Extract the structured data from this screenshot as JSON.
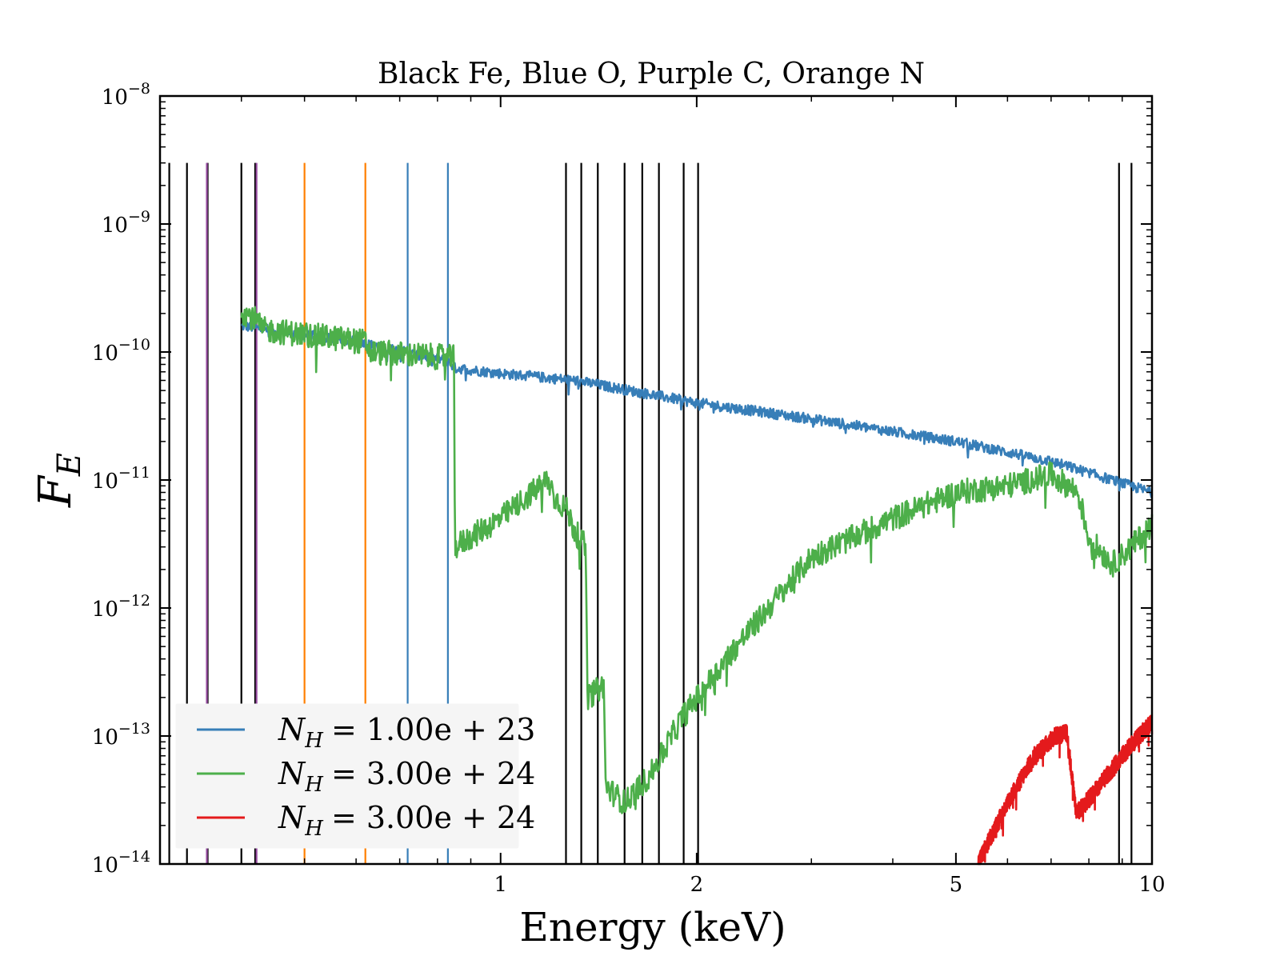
{
  "chart_data": {
    "type": "line",
    "title": "Black Fe, Blue O, Purple C, Orange N",
    "xlabel": "Energy (keV)",
    "ylabel": "F_E",
    "xscale": "log",
    "yscale": "log",
    "xlim": [
      0.3,
      10
    ],
    "ylim": [
      1e-14,
      1e-08
    ],
    "x_ticks": [
      {
        "value": 1,
        "label": "1"
      },
      {
        "value": 2,
        "label": "2"
      },
      {
        "value": 5,
        "label": "5"
      },
      {
        "value": 10,
        "label": "10"
      }
    ],
    "y_ticks": [
      {
        "value": 1e-14,
        "base": "10",
        "exp": "−14"
      },
      {
        "value": 1e-13,
        "base": "10",
        "exp": "−13"
      },
      {
        "value": 1e-12,
        "base": "10",
        "exp": "−12"
      },
      {
        "value": 1e-11,
        "base": "10",
        "exp": "−11"
      },
      {
        "value": 1e-10,
        "base": "10",
        "exp": "−10"
      },
      {
        "value": 1e-09,
        "base": "10",
        "exp": "−9"
      },
      {
        "value": 1e-08,
        "base": "10",
        "exp": "−8"
      }
    ],
    "grid": false,
    "legend_position": "lower-left",
    "vertical_lines": {
      "top_value": 3e-09,
      "groups": [
        {
          "element": "Fe",
          "color": "#000000",
          "x": [
            0.31,
            0.33,
            0.355,
            0.4,
            0.42,
            1.26,
            1.33,
            1.41,
            1.55,
            1.65,
            1.75,
            1.91,
            2.01,
            8.9,
            9.3
          ]
        },
        {
          "element": "O",
          "color": "#377eb8",
          "x": [
            0.72,
            0.83
          ]
        },
        {
          "element": "C",
          "color": "#984ea3",
          "x": [
            0.354,
            0.422
          ]
        },
        {
          "element": "N",
          "color": "#ff7f00",
          "x": [
            0.5,
            0.62
          ]
        }
      ]
    },
    "series": [
      {
        "legend": {
          "base": "N",
          "sub": "H",
          "rest": "= 1.00e + 23"
        },
        "color": "#377eb8",
        "noise": 0.04,
        "points": [
          [
            0.4,
            1.6e-10
          ],
          [
            0.6,
            1.2e-10
          ],
          [
            0.83,
            8.5e-11
          ],
          [
            0.85,
            7.5e-11
          ],
          [
            1.0,
            6.8e-11
          ],
          [
            1.3,
            6e-11
          ],
          [
            2.0,
            4e-11
          ],
          [
            3.0,
            3e-11
          ],
          [
            5.0,
            2e-11
          ],
          [
            7.0,
            1.4e-11
          ],
          [
            10.0,
            8e-12
          ]
        ]
      },
      {
        "legend": {
          "base": "N",
          "sub": "H",
          "rest": "= 3.00e + 24"
        },
        "color": "#4daf4a",
        "noise": 0.1,
        "points": [
          [
            0.4,
            2.1e-10
          ],
          [
            0.42,
            1.8e-10
          ],
          [
            0.43,
            1.5e-10
          ],
          [
            0.62,
            1.2e-10
          ],
          [
            0.63,
            1e-10
          ],
          [
            0.848,
            9e-11
          ],
          [
            0.851,
            3e-12
          ],
          [
            1.0,
            5e-12
          ],
          [
            1.18,
            1e-11
          ],
          [
            1.22,
            7e-12
          ],
          [
            1.26,
            6e-12
          ],
          [
            1.3,
            4e-12
          ],
          [
            1.35,
            3e-12
          ],
          [
            1.36,
            2e-13
          ],
          [
            1.44,
            2.5e-13
          ],
          [
            1.45,
            4e-14
          ],
          [
            1.55,
            3e-14
          ],
          [
            1.7,
            5e-14
          ],
          [
            1.9,
            1.4e-13
          ],
          [
            2.3,
            5e-13
          ],
          [
            3.0,
            2.5e-12
          ],
          [
            4.0,
            5e-12
          ],
          [
            5.0,
            8e-12
          ],
          [
            6.0,
            9e-12
          ],
          [
            7.0,
            1.1e-11
          ],
          [
            7.7,
            8e-12
          ],
          [
            8.0,
            3.5e-12
          ],
          [
            8.7,
            2.2e-12
          ],
          [
            9.3,
            3e-12
          ],
          [
            10.0,
            4.5e-12
          ]
        ]
      },
      {
        "legend": {
          "base": "N",
          "sub": "H",
          "rest": "= 3.00e + 24"
        },
        "color": "#e41a1c",
        "noise": 0.07,
        "points": [
          [
            5.4,
            1e-14
          ],
          [
            6.0,
            3e-14
          ],
          [
            6.6,
            7e-14
          ],
          [
            7.1,
            1e-13
          ],
          [
            7.4,
            1.05e-13
          ],
          [
            7.65,
            2.5e-14
          ],
          [
            8.0,
            3.2e-14
          ],
          [
            9.0,
            7e-14
          ],
          [
            10.0,
            1.3e-13
          ]
        ]
      }
    ]
  }
}
